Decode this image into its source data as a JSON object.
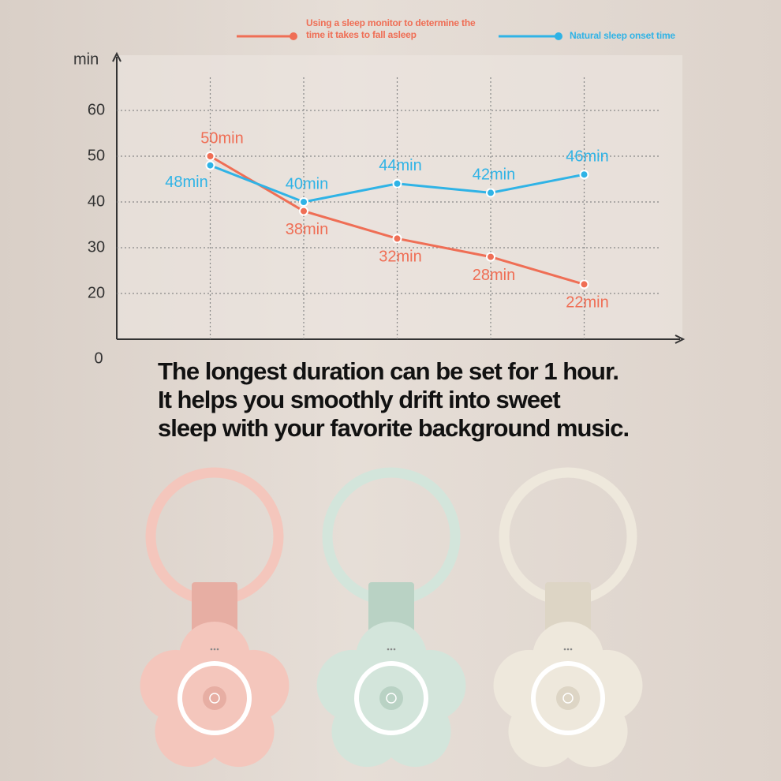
{
  "chart_data": {
    "type": "line",
    "y_label": "min",
    "origin_label": "0",
    "categories": [
      null,
      null,
      null,
      null,
      null
    ],
    "series": [
      {
        "name": "Using a sleep monitor to determine the time it takes to fall asleep",
        "color": "#ef6e55",
        "values": [
          50,
          38,
          32,
          28,
          22
        ],
        "value_labels": [
          "50min",
          "38min",
          "32min",
          "28min",
          "22min"
        ]
      },
      {
        "name": "Natural sleep onset time",
        "color": "#2fb3e6",
        "values": [
          48,
          40,
          44,
          42,
          46
        ],
        "value_labels": [
          "48min",
          "40min",
          "44min",
          "42min",
          "46min"
        ]
      }
    ],
    "ylim": [
      10,
      70
    ],
    "yticks": [
      20,
      30,
      40,
      50,
      60
    ],
    "grid": true
  },
  "caption": [
    "The longest duration can be set for 1 hour.",
    "It helps you smoothly drift into sweet",
    "sleep with your favorite background music."
  ]
}
